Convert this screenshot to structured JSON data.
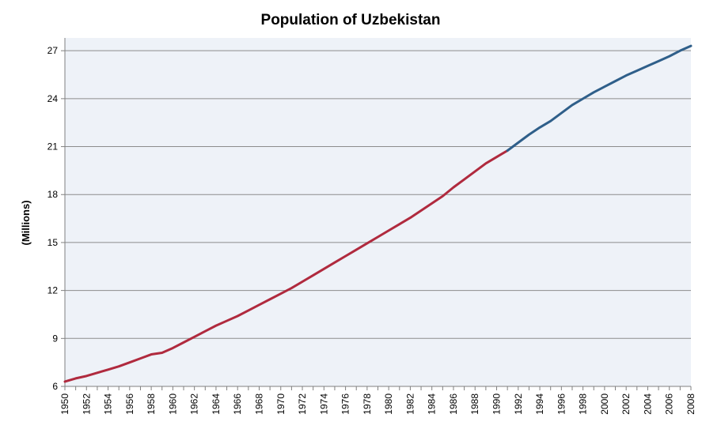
{
  "chart_data": {
    "type": "line",
    "title": "Population of Uzbekistan",
    "xlabel": "",
    "ylabel": "(Millions)",
    "xlim": [
      1950,
      2008
    ],
    "ylim": [
      6,
      27.8
    ],
    "yticks": [
      6,
      9,
      12,
      15,
      18,
      21,
      24,
      27
    ],
    "xticks": [
      1950,
      1952,
      1954,
      1956,
      1958,
      1960,
      1962,
      1964,
      1966,
      1968,
      1970,
      1972,
      1974,
      1976,
      1978,
      1980,
      1982,
      1984,
      1986,
      1988,
      1990,
      1992,
      1994,
      1996,
      1998,
      2000,
      2002,
      2004,
      2006,
      2008
    ],
    "grid": true,
    "legend": "none",
    "colors": {
      "plot_bg": "#eef2f8",
      "grid": "#8c8c8c",
      "axis": "#808080",
      "series_1": "#b02a3e",
      "series_2": "#2f5f8a"
    },
    "series": [
      {
        "x": [
          1950,
          1951,
          1952,
          1953,
          1954,
          1955,
          1956,
          1957,
          1958,
          1959,
          1960,
          1961,
          1962,
          1963,
          1964,
          1965,
          1966,
          1967,
          1968,
          1969,
          1970,
          1971,
          1972,
          1973,
          1974,
          1975,
          1976,
          1977,
          1978,
          1979,
          1980,
          1981,
          1982,
          1983,
          1984,
          1985,
          1986,
          1987,
          1988,
          1989,
          1990,
          1991
        ],
        "values": [
          6.3,
          6.5,
          6.65,
          6.85,
          7.05,
          7.25,
          7.5,
          7.75,
          8.0,
          8.1,
          8.4,
          8.75,
          9.1,
          9.45,
          9.8,
          10.1,
          10.4,
          10.75,
          11.1,
          11.45,
          11.8,
          12.15,
          12.55,
          12.95,
          13.35,
          13.75,
          14.15,
          14.55,
          14.95,
          15.35,
          15.75,
          16.15,
          16.55,
          17.0,
          17.45,
          17.9,
          18.45,
          18.95,
          19.45,
          19.95,
          20.35,
          20.75
        ]
      },
      {
        "x": [
          1991,
          1992,
          1993,
          1994,
          1995,
          1996,
          1997,
          1998,
          1999,
          2000,
          2001,
          2002,
          2003,
          2004,
          2005,
          2006,
          2007,
          2008
        ],
        "values": [
          20.75,
          21.25,
          21.75,
          22.2,
          22.6,
          23.1,
          23.6,
          24.0,
          24.4,
          24.75,
          25.1,
          25.45,
          25.75,
          26.05,
          26.35,
          26.65,
          27.0,
          27.3
        ]
      }
    ]
  }
}
